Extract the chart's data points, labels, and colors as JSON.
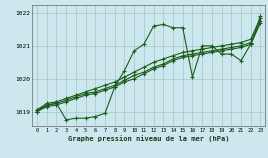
{
  "background_color": "#cce8ee",
  "grid_color": "#aacccc",
  "line_color": "#1a5c1a",
  "title": "Graphe pression niveau de la mer (hPa)",
  "xlim": [
    -0.5,
    23.5
  ],
  "ylim": [
    1018.55,
    1022.25
  ],
  "yticks": [
    1019,
    1020,
    1021,
    1022
  ],
  "xticks": [
    0,
    1,
    2,
    3,
    4,
    5,
    6,
    7,
    8,
    9,
    10,
    11,
    12,
    13,
    14,
    15,
    16,
    17,
    18,
    19,
    20,
    21,
    22,
    23
  ],
  "series": [
    [
      1019.0,
      1019.2,
      1019.25,
      1018.75,
      1018.8,
      1018.8,
      1018.85,
      1018.95,
      1019.75,
      1020.25,
      1020.85,
      1021.05,
      1021.6,
      1021.65,
      1021.55,
      1021.55,
      1020.05,
      1021.0,
      1021.0,
      1020.75,
      1020.75,
      1020.55,
      1021.05,
      1021.9
    ],
    [
      1019.05,
      1019.25,
      1019.3,
      1019.4,
      1019.5,
      1019.6,
      1019.7,
      1019.8,
      1019.9,
      1020.05,
      1020.2,
      1020.35,
      1020.5,
      1020.6,
      1020.7,
      1020.8,
      1020.85,
      1020.9,
      1020.95,
      1021.0,
      1021.05,
      1021.1,
      1021.2,
      1021.85
    ],
    [
      1019.05,
      1019.2,
      1019.25,
      1019.35,
      1019.45,
      1019.55,
      1019.6,
      1019.7,
      1019.8,
      1019.95,
      1020.1,
      1020.2,
      1020.35,
      1020.45,
      1020.6,
      1020.7,
      1020.75,
      1020.8,
      1020.85,
      1020.9,
      1020.95,
      1021.0,
      1021.1,
      1021.75
    ],
    [
      1019.0,
      1019.15,
      1019.2,
      1019.3,
      1019.4,
      1019.5,
      1019.55,
      1019.65,
      1019.75,
      1019.9,
      1020.0,
      1020.15,
      1020.3,
      1020.4,
      1020.55,
      1020.65,
      1020.7,
      1020.75,
      1020.8,
      1020.85,
      1020.9,
      1020.95,
      1021.05,
      1021.7
    ]
  ]
}
